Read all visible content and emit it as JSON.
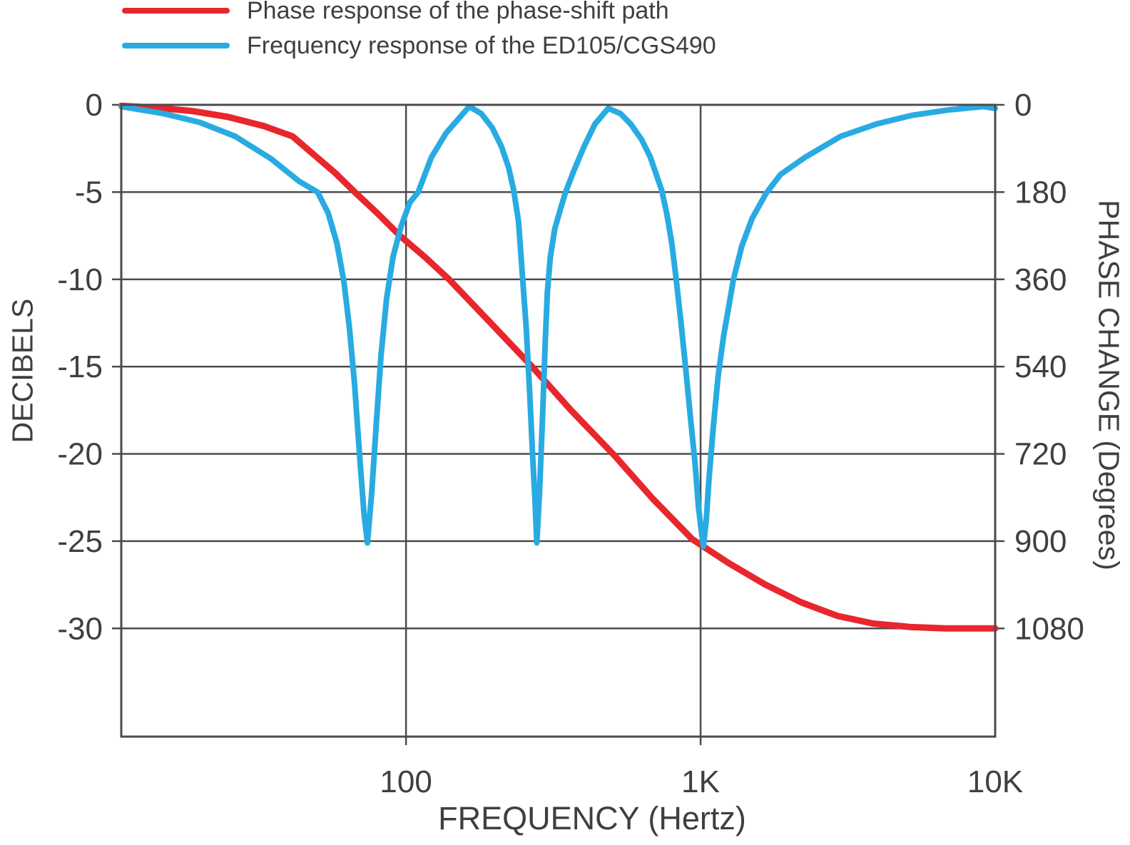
{
  "colors": {
    "background": "#ffffff",
    "axis": "#4b4b4d",
    "text": "#3f3f41",
    "phase_series": "#e8262d",
    "frequency_series": "#29abe2"
  },
  "legend": {
    "items": [
      {
        "id": "phase-response",
        "label": "Phase response of the phase-shift path",
        "color": "#e8262d"
      },
      {
        "id": "frequency-response",
        "label": "Frequency response of the ED105/CGS490",
        "color": "#29abe2"
      }
    ]
  },
  "chart_data": {
    "type": "line",
    "title": "",
    "x_axis": {
      "label": "FREQUENCY (Hertz)",
      "scale": "log",
      "min": 10.8,
      "max": 10000,
      "gridlines": [
        100,
        1000
      ],
      "ticks": [
        {
          "value": 100,
          "label": "100"
        },
        {
          "value": 1000,
          "label": "1K"
        },
        {
          "value": 10000,
          "label": "10K"
        }
      ]
    },
    "y_axis_left": {
      "label": "DECIBELS",
      "unit": "dB",
      "max": 0,
      "min": -36.2,
      "gridlines": [
        0,
        -5,
        -10,
        -15,
        -20,
        -25,
        -30
      ],
      "ticks": [
        {
          "value": 0,
          "label": "0"
        },
        {
          "value": -5,
          "label": "-5"
        },
        {
          "value": -10,
          "label": "-10"
        },
        {
          "value": -15,
          "label": "-15"
        },
        {
          "value": -20,
          "label": "-20"
        },
        {
          "value": -25,
          "label": "-25"
        },
        {
          "value": -30,
          "label": "-30"
        }
      ]
    },
    "y_axis_right": {
      "label": "PHASE CHANGE (Degrees)",
      "unit": "degrees",
      "max": 0,
      "min": 1303,
      "degrees_per_db": 36,
      "ticks": [
        {
          "value": 0,
          "label": "0"
        },
        {
          "value": 180,
          "label": "180"
        },
        {
          "value": 360,
          "label": "360"
        },
        {
          "value": 540,
          "label": "540"
        },
        {
          "value": 720,
          "label": "720"
        },
        {
          "value": 900,
          "label": "900"
        }
      ],
      "extra_tick": {
        "value": 1080,
        "label": "1080"
      }
    },
    "series": [
      {
        "id": "phase-response-curve",
        "name": "Phase response of the phase-shift path",
        "axis": "right",
        "unit": "degrees",
        "color": "#e8262d",
        "stroke_width": 9,
        "points": [
          [
            10.8,
            2
          ],
          [
            14.3,
            6
          ],
          [
            18.9,
            13
          ],
          [
            24.9,
            25
          ],
          [
            33,
            44
          ],
          [
            41.2,
            65
          ],
          [
            48.7,
            103
          ],
          [
            57.6,
            141
          ],
          [
            67.3,
            181
          ],
          [
            80.4,
            225
          ],
          [
            95,
            269
          ],
          [
            116,
            314
          ],
          [
            140,
            360
          ],
          [
            196,
            453
          ],
          [
            266,
            538
          ],
          [
            362,
            629
          ],
          [
            506,
            721
          ],
          [
            689,
            813
          ],
          [
            937,
            896
          ],
          [
            1244,
            945
          ],
          [
            1651,
            989
          ],
          [
            2191,
            1026
          ],
          [
            2908,
            1054
          ],
          [
            3860,
            1070
          ],
          [
            5123,
            1077
          ],
          [
            6800,
            1080
          ],
          [
            10000,
            1080
          ]
        ]
      },
      {
        "id": "frequency-response-curve",
        "name": "Frequency response of the ED105/CGS490",
        "axis": "left",
        "unit": "dB",
        "color": "#29abe2",
        "stroke_width": 8,
        "points": [
          [
            10.8,
            -0.1
          ],
          [
            15,
            -0.5
          ],
          [
            19.9,
            -1.0
          ],
          [
            26.3,
            -1.8
          ],
          [
            34.9,
            -3.1
          ],
          [
            43.5,
            -4.4
          ],
          [
            50.1,
            -5.0
          ],
          [
            54.4,
            -6.2
          ],
          [
            58.2,
            -7.9
          ],
          [
            61.5,
            -10.1
          ],
          [
            64.3,
            -12.8
          ],
          [
            66.9,
            -16.0
          ],
          [
            69.6,
            -20.1
          ],
          [
            72,
            -23.4
          ],
          [
            74,
            -25.1
          ],
          [
            76.5,
            -22.2
          ],
          [
            79.1,
            -18.5
          ],
          [
            82.2,
            -14.4
          ],
          [
            85.9,
            -11.1
          ],
          [
            90.4,
            -8.7
          ],
          [
            96.1,
            -7.0
          ],
          [
            103,
            -5.6
          ],
          [
            110,
            -5.0
          ],
          [
            122,
            -3.0
          ],
          [
            137,
            -1.6
          ],
          [
            164,
            -0.1
          ],
          [
            180,
            -0.5
          ],
          [
            196,
            -1.3
          ],
          [
            211,
            -2.4
          ],
          [
            223,
            -3.6
          ],
          [
            232,
            -4.9
          ],
          [
            241,
            -6.7
          ],
          [
            249,
            -10.0
          ],
          [
            256,
            -12.8
          ],
          [
            263,
            -16.5
          ],
          [
            269,
            -20.1
          ],
          [
            274,
            -22.6
          ],
          [
            278,
            -25.1
          ],
          [
            284,
            -22.2
          ],
          [
            291,
            -17.7
          ],
          [
            297,
            -13.6
          ],
          [
            302,
            -10.7
          ],
          [
            309,
            -8.7
          ],
          [
            320,
            -7.1
          ],
          [
            334,
            -6.0
          ],
          [
            348,
            -5.0
          ],
          [
            371,
            -3.8
          ],
          [
            402,
            -2.4
          ],
          [
            438,
            -1.1
          ],
          [
            486,
            -0.2
          ],
          [
            534,
            -0.5
          ],
          [
            579,
            -1.1
          ],
          [
            631,
            -2.0
          ],
          [
            675,
            -3.0
          ],
          [
            714,
            -4.2
          ],
          [
            738,
            -4.9
          ],
          [
            767,
            -6.2
          ],
          [
            798,
            -7.9
          ],
          [
            825,
            -9.9
          ],
          [
            857,
            -12.4
          ],
          [
            891,
            -15.2
          ],
          [
            926,
            -18.1
          ],
          [
            957,
            -20.5
          ],
          [
            983,
            -23.0
          ],
          [
            1005,
            -24.4
          ],
          [
            1022,
            -25.3
          ],
          [
            1045,
            -23.8
          ],
          [
            1068,
            -21.4
          ],
          [
            1104,
            -18.5
          ],
          [
            1146,
            -15.6
          ],
          [
            1198,
            -13.2
          ],
          [
            1245,
            -11.6
          ],
          [
            1293,
            -10.0
          ],
          [
            1380,
            -8.1
          ],
          [
            1497,
            -6.5
          ],
          [
            1665,
            -5.1
          ],
          [
            1866,
            -4.0
          ],
          [
            2266,
            -3.0
          ],
          [
            2994,
            -1.8
          ],
          [
            3955,
            -1.1
          ],
          [
            5226,
            -0.6
          ],
          [
            6905,
            -0.3
          ],
          [
            9121,
            -0.1
          ],
          [
            10000,
            -0.2
          ]
        ]
      }
    ]
  }
}
